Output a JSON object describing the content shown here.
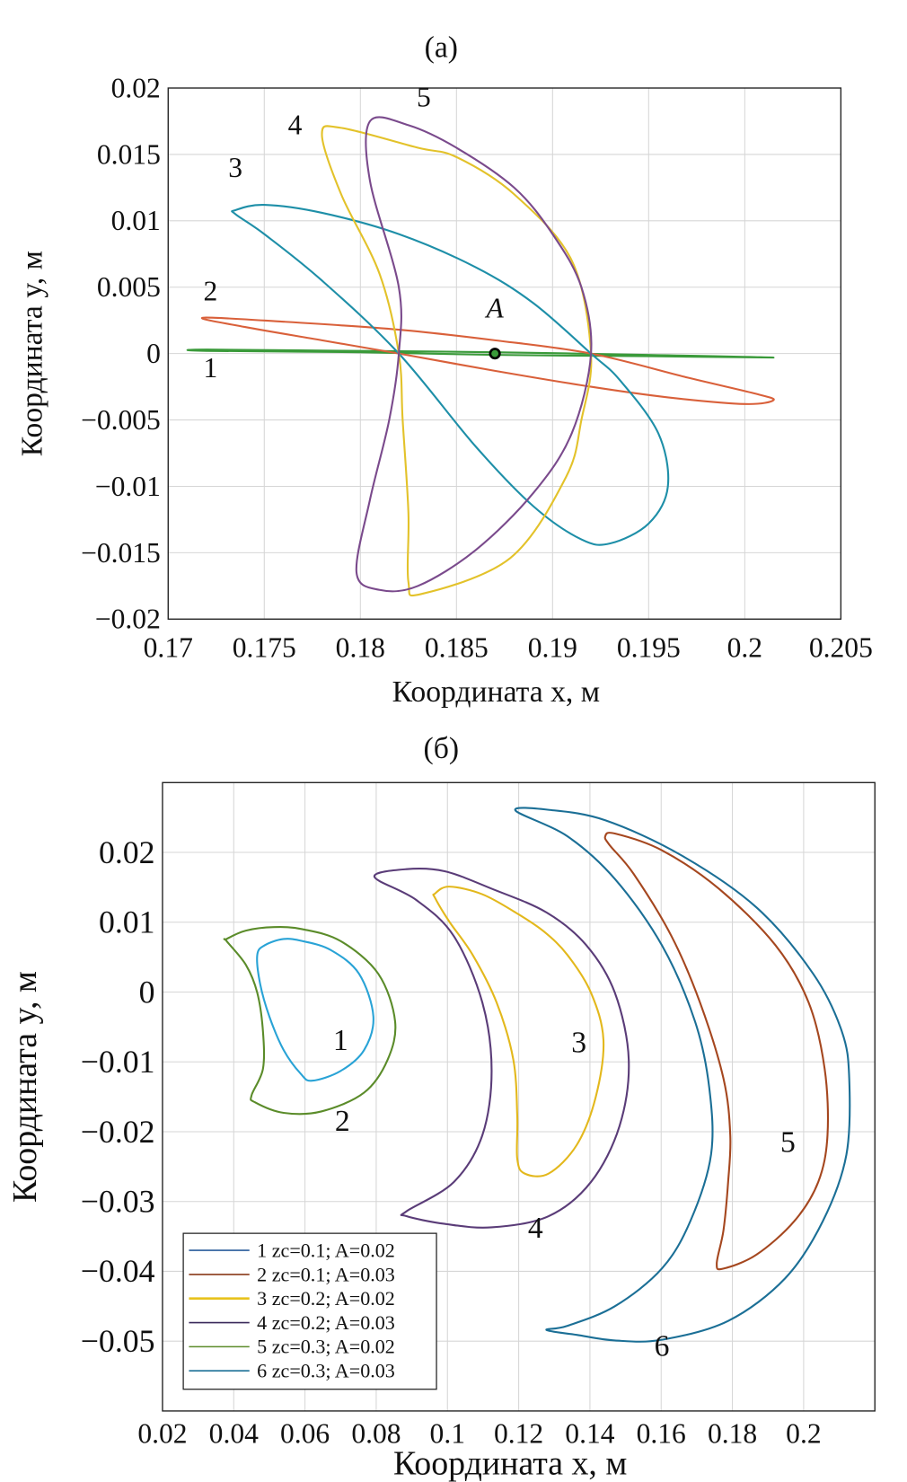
{
  "chart_data": [
    {
      "type": "line",
      "title": "(a)",
      "xlabel": "Координата x, м",
      "ylabel": "Координата y, м",
      "xlim": [
        0.17,
        0.205
      ],
      "ylim": [
        -0.02,
        0.02
      ],
      "xticks": [
        0.17,
        0.175,
        0.18,
        0.185,
        0.19,
        0.195,
        0.2,
        0.205
      ],
      "xtick_labels": [
        "0.17",
        "0.175",
        "0.18",
        "0.185",
        "0.19",
        "0.195",
        "0.2",
        "0.205"
      ],
      "yticks": [
        0.02,
        0.015,
        0.01,
        0.005,
        0,
        -0.005,
        -0.01,
        -0.015,
        -0.02
      ],
      "ytick_labels": [
        "0.02",
        "0.015",
        "0.01",
        "0.005",
        "0",
        "−0.005",
        "−0.01",
        "−0.015",
        "−0.02"
      ],
      "grid": true,
      "series": [
        {
          "label": "1",
          "color": "#3a9a3a",
          "label_pos": [
            0.1722,
            -0.0018
          ],
          "points": [
            [
              0.172,
              0.0003
            ],
            [
              0.18,
              0.0002
            ],
            [
              0.187,
              0.0001
            ],
            [
              0.195,
              -0.0001
            ],
            [
              0.2015,
              -0.0003
            ],
            [
              0.195,
              -0.0002
            ],
            [
              0.187,
              -0.0001
            ],
            [
              0.18,
              0.0001
            ],
            [
              0.172,
              0.0002
            ]
          ]
        },
        {
          "label": "2",
          "color": "#d9603a",
          "label_pos": [
            0.1722,
            0.004
          ],
          "points": [
            [
              0.1718,
              0.0027
            ],
            [
              0.176,
              0.0024
            ],
            [
              0.182,
              0.0018
            ],
            [
              0.187,
              0.001
            ],
            [
              0.192,
              0.0
            ],
            [
              0.197,
              -0.0018
            ],
            [
              0.2005,
              -0.003
            ],
            [
              0.2015,
              -0.0035
            ],
            [
              0.2,
              -0.0038
            ],
            [
              0.196,
              -0.0033
            ],
            [
              0.192,
              -0.0025
            ],
            [
              0.187,
              -0.0013
            ],
            [
              0.182,
              0.0
            ],
            [
              0.178,
              0.001
            ],
            [
              0.174,
              0.002
            ]
          ]
        },
        {
          "label": "3",
          "color": "#1e8fa8",
          "label_pos": [
            0.1735,
            0.0133
          ],
          "points": [
            [
              0.1735,
              0.0108
            ],
            [
              0.175,
              0.0112
            ],
            [
              0.178,
              0.0106
            ],
            [
              0.182,
              0.009
            ],
            [
              0.186,
              0.0065
            ],
            [
              0.189,
              0.0038
            ],
            [
              0.192,
              0.0
            ],
            [
              0.1935,
              -0.002
            ],
            [
              0.1955,
              -0.006
            ],
            [
              0.196,
              -0.01
            ],
            [
              0.195,
              -0.0128
            ],
            [
              0.193,
              -0.0143
            ],
            [
              0.1915,
              -0.014
            ],
            [
              0.189,
              -0.0115
            ],
            [
              0.186,
              -0.007
            ],
            [
              0.182,
              0.0
            ],
            [
              0.178,
              0.0055
            ],
            [
              0.175,
              0.009
            ],
            [
              0.1735,
              0.0105
            ]
          ]
        },
        {
          "label": "4",
          "color": "#e3c22a",
          "label_pos": [
            0.1766,
            0.0165
          ],
          "points": [
            [
              0.178,
              0.0165
            ],
            [
              0.179,
              0.017
            ],
            [
              0.183,
              0.0155
            ],
            [
              0.185,
              0.0148
            ],
            [
              0.188,
              0.012
            ],
            [
              0.191,
              0.007
            ],
            [
              0.192,
              0.0
            ],
            [
              0.1915,
              -0.005
            ],
            [
              0.1907,
              -0.0093
            ],
            [
              0.1878,
              -0.0154
            ],
            [
              0.1832,
              -0.0181
            ],
            [
              0.1825,
              -0.0172
            ],
            [
              0.1825,
              -0.012
            ],
            [
              0.1822,
              -0.005
            ],
            [
              0.182,
              0.0
            ],
            [
              0.181,
              0.006
            ],
            [
              0.179,
              0.012
            ]
          ]
        },
        {
          "label": "5",
          "color": "#7a4a8c",
          "label_pos": [
            0.1833,
            0.0186
          ],
          "points": [
            [
              0.1805,
              0.0175
            ],
            [
              0.1825,
              0.0172
            ],
            [
              0.185,
              0.0155
            ],
            [
              0.188,
              0.0125
            ],
            [
              0.19,
              0.009
            ],
            [
              0.1915,
              0.005
            ],
            [
              0.192,
              0.0
            ],
            [
              0.191,
              -0.006
            ],
            [
              0.189,
              -0.0105
            ],
            [
              0.186,
              -0.0148
            ],
            [
              0.183,
              -0.0175
            ],
            [
              0.181,
              -0.0178
            ],
            [
              0.1798,
              -0.0165
            ],
            [
              0.1805,
              -0.011
            ],
            [
              0.1815,
              -0.005
            ],
            [
              0.182,
              0.0
            ],
            [
              0.182,
              0.005
            ],
            [
              0.1805,
              0.013
            ]
          ]
        }
      ],
      "annotations": [
        {
          "text": "A",
          "x": 0.187,
          "y": 0.0027
        }
      ],
      "marker": {
        "label": "A",
        "x": 0.187,
        "y": 0.0
      }
    },
    {
      "type": "line",
      "title": "(б)",
      "xlabel": "Координата x, м",
      "ylabel": "Координата y, м",
      "xlim": [
        0.02,
        0.22
      ],
      "ylim": [
        -0.06,
        0.03
      ],
      "xticks": [
        0.02,
        0.04,
        0.06,
        0.08,
        0.1,
        0.12,
        0.14,
        0.16,
        0.18,
        0.2
      ],
      "xtick_labels": [
        "0.02",
        "0.04",
        "0.06",
        "0.08",
        "0.1",
        "0.12",
        "0.14",
        "0.16",
        "0.18",
        "0.2"
      ],
      "yticks": [
        0.02,
        0.01,
        0,
        -0.01,
        -0.02,
        -0.03,
        -0.04,
        -0.05
      ],
      "ytick_labels": [
        "0.02",
        "0.01",
        "0",
        "−0.01",
        "−0.02",
        "−0.03",
        "−0.04",
        "−0.05"
      ],
      "grid": true,
      "legend_position": "bottom-left",
      "legend": [
        {
          "text": "1 zc=0.1; A=0.02",
          "color": "#2a5d9c"
        },
        {
          "text": "2 zc=0.1; A=0.03",
          "color": "#8a3a1a"
        },
        {
          "text": "3 zc=0.2; A=0.02",
          "color": "#e8c21c"
        },
        {
          "text": "4 zc=0.2; A=0.03",
          "color": "#3a2a5a"
        },
        {
          "text": "5 zc=0.3; A=0.02",
          "color": "#5b8c2a"
        },
        {
          "text": "6 zc=0.3; A=0.03",
          "color": "#1b6f96"
        }
      ],
      "series": [
        {
          "label": "1",
          "color": "#29a3d6",
          "label_pos": [
            0.07,
            -0.0083
          ],
          "points": [
            [
              0.0487,
              0.0067
            ],
            [
              0.054,
              0.0076
            ],
            [
              0.0593,
              0.0073
            ],
            [
              0.0673,
              0.006
            ],
            [
              0.0752,
              0.0026
            ],
            [
              0.0792,
              -0.0035
            ],
            [
              0.0766,
              -0.0083
            ],
            [
              0.07,
              -0.0113
            ],
            [
              0.062,
              -0.0127
            ],
            [
              0.0588,
              -0.0117
            ],
            [
              0.054,
              -0.0083
            ],
            [
              0.05,
              -0.0035
            ],
            [
              0.0474,
              0.0012
            ],
            [
              0.0466,
              0.0053
            ]
          ]
        },
        {
          "label": "2",
          "color": "#5b8c2a",
          "label_pos": [
            0.0705,
            -0.0199
          ],
          "points": [
            [
              0.038,
              0.0076
            ],
            [
              0.0434,
              0.0088
            ],
            [
              0.0513,
              0.0093
            ],
            [
              0.0593,
              0.009
            ],
            [
              0.07,
              0.0073
            ],
            [
              0.0806,
              0.0026
            ],
            [
              0.0853,
              -0.0042
            ],
            [
              0.0832,
              -0.0097
            ],
            [
              0.0766,
              -0.0144
            ],
            [
              0.0646,
              -0.0171
            ],
            [
              0.054,
              -0.0173
            ],
            [
              0.046,
              -0.0158
            ],
            [
              0.045,
              -0.0148
            ],
            [
              0.0482,
              -0.011
            ],
            [
              0.0482,
              -0.0056
            ],
            [
              0.0466,
              -0.0001
            ],
            [
              0.0434,
              0.0039
            ],
            [
              0.038,
              0.0073
            ]
          ]
        },
        {
          "label": "3",
          "color": "#e3b81c",
          "label_pos": [
            0.1369,
            -0.0086
          ],
          "points": [
            [
              0.0965,
              0.0141
            ],
            [
              0.1005,
              0.0151
            ],
            [
              0.1098,
              0.014
            ],
            [
              0.1191,
              0.0114
            ],
            [
              0.127,
              0.0087
            ],
            [
              0.1337,
              0.0053
            ],
            [
              0.1403,
              -0.0001
            ],
            [
              0.1438,
              -0.0069
            ],
            [
              0.1416,
              -0.0151
            ],
            [
              0.1363,
              -0.0219
            ],
            [
              0.1284,
              -0.026
            ],
            [
              0.1217,
              -0.026
            ],
            [
              0.1196,
              -0.0239
            ],
            [
              0.1196,
              -0.0178
            ],
            [
              0.1185,
              -0.0097
            ],
            [
              0.1138,
              -0.0015
            ],
            [
              0.1071,
              0.0053
            ],
            [
              0.1005,
              0.0101
            ],
            [
              0.0965,
              0.0135
            ]
          ]
        },
        {
          "label": "4",
          "color": "#5a3c78",
          "label_pos": [
            0.1247,
            -0.0352
          ],
          "points": [
            [
              0.0795,
              0.0165
            ],
            [
              0.0885,
              0.0176
            ],
            [
              0.0992,
              0.0173
            ],
            [
              0.1124,
              0.0148
            ],
            [
              0.1278,
              0.0114
            ],
            [
              0.139,
              0.0067
            ],
            [
              0.147,
              -0.0001
            ],
            [
              0.1509,
              -0.0097
            ],
            [
              0.1483,
              -0.0192
            ],
            [
              0.1403,
              -0.0272
            ],
            [
              0.1284,
              -0.0321
            ],
            [
              0.1124,
              -0.0337
            ],
            [
              0.0992,
              -0.0332
            ],
            [
              0.0885,
              -0.0321
            ],
            [
              0.0885,
              -0.0314
            ],
            [
              0.1018,
              -0.0272
            ],
            [
              0.1098,
              -0.0205
            ],
            [
              0.1124,
              -0.0113
            ],
            [
              0.1098,
              -0.0015
            ],
            [
              0.1018,
              0.008
            ],
            [
              0.0912,
              0.0132
            ]
          ]
        },
        {
          "label": "5",
          "color": "#a5471f",
          "label_pos": [
            0.1956,
            -0.0229
          ],
          "points": [
            [
              0.1443,
              0.0223
            ],
            [
              0.147,
              0.0227
            ],
            [
              0.1602,
              0.0203
            ],
            [
              0.1762,
              0.0148
            ],
            [
              0.1921,
              0.0067
            ],
            [
              0.2014,
              -0.0015
            ],
            [
              0.2059,
              -0.011
            ],
            [
              0.2067,
              -0.0205
            ],
            [
              0.2041,
              -0.0272
            ],
            [
              0.1974,
              -0.0328
            ],
            [
              0.1868,
              -0.0376
            ],
            [
              0.1775,
              -0.0396
            ],
            [
              0.1756,
              -0.0389
            ],
            [
              0.1775,
              -0.0341
            ],
            [
              0.1788,
              -0.0272
            ],
            [
              0.1794,
              -0.0205
            ],
            [
              0.1775,
              -0.0124
            ],
            [
              0.1709,
              -0.0015
            ],
            [
              0.1629,
              0.008
            ],
            [
              0.1523,
              0.0169
            ],
            [
              0.1456,
              0.021
            ]
          ]
        },
        {
          "label": "6",
          "color": "#1b6f96",
          "label_pos": [
            0.1602,
            -0.0521
          ],
          "points": [
            [
              0.1191,
              0.026
            ],
            [
              0.1284,
              0.0261
            ],
            [
              0.1443,
              0.0246
            ],
            [
              0.1656,
              0.0196
            ],
            [
              0.1868,
              0.0121
            ],
            [
              0.2027,
              0.0026
            ],
            [
              0.2107,
              -0.0056
            ],
            [
              0.2128,
              -0.0124
            ],
            [
              0.212,
              -0.0233
            ],
            [
              0.2054,
              -0.0328
            ],
            [
              0.1948,
              -0.041
            ],
            [
              0.1788,
              -0.0471
            ],
            [
              0.1602,
              -0.0498
            ],
            [
              0.147,
              -0.0499
            ],
            [
              0.1363,
              -0.0491
            ],
            [
              0.1278,
              -0.0484
            ],
            [
              0.1337,
              -0.0478
            ],
            [
              0.147,
              -0.045
            ],
            [
              0.1602,
              -0.0396
            ],
            [
              0.1682,
              -0.0328
            ],
            [
              0.174,
              -0.0233
            ],
            [
              0.1735,
              -0.0137
            ],
            [
              0.1695,
              -0.0042
            ],
            [
              0.1602,
              0.0067
            ],
            [
              0.147,
              0.0162
            ],
            [
              0.1337,
              0.0223
            ]
          ]
        }
      ]
    }
  ]
}
